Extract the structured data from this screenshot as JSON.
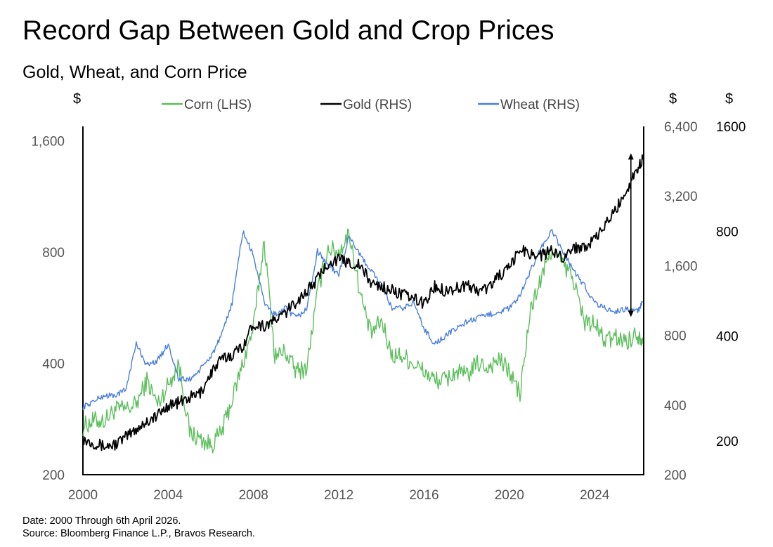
{
  "chart_data": {
    "type": "line",
    "title": "Record Gap Between Gold and Crop Prices",
    "subtitle": "Gold, Wheat, and Corn Price",
    "footer": [
      "Date: 2000 Through 6th April 2026.",
      "Source: Bloomberg Finance L.P., Bravos Research."
    ],
    "legend_placement": "top",
    "grid": false,
    "x_range": [
      2000,
      2026.3
    ],
    "x_ticks": [
      2000,
      2004,
      2008,
      2012,
      2016,
      2020,
      2024
    ],
    "axes": {
      "left": {
        "unit": "$",
        "scale": "log",
        "range": [
          200,
          1750
        ],
        "ticks": [
          200,
          400,
          800,
          1600
        ],
        "tick_labels": [
          "200",
          "400",
          "800",
          "1,600"
        ]
      },
      "right1": {
        "unit": "$",
        "scale": "log",
        "range": [
          200,
          6400
        ],
        "ticks": [
          200,
          400,
          800,
          1600,
          3200,
          6400
        ],
        "tick_labels": [
          "200",
          "400",
          "800",
          "1,600",
          "3,200",
          "6,400"
        ]
      },
      "right2": {
        "unit": "$",
        "scale": "log",
        "range": [
          160,
          1600
        ],
        "ticks": [
          200,
          400,
          800,
          1600
        ],
        "tick_labels": [
          "200",
          "400",
          "800",
          "1600"
        ]
      }
    },
    "annotation": {
      "type": "double-arrow",
      "x": 2025.7,
      "from_gold": 4900,
      "to_gold": 960
    },
    "series": [
      {
        "name": "Corn (LHS)",
        "axis": "left",
        "color": "#5cbe5c",
        "x": [
          2000,
          2000.5,
          2001,
          2001.5,
          2002,
          2002.5,
          2003,
          2003.5,
          2004,
          2004.5,
          2005,
          2005.5,
          2006,
          2006.5,
          2007,
          2007.5,
          2008,
          2008.5,
          2009,
          2009.5,
          2010,
          2010.5,
          2011,
          2011.5,
          2012,
          2012.5,
          2013,
          2013.5,
          2014,
          2014.5,
          2015,
          2015.5,
          2016,
          2016.5,
          2017,
          2017.5,
          2018,
          2018.5,
          2019,
          2019.5,
          2020,
          2020.5,
          2021,
          2021.5,
          2022,
          2022.5,
          2023,
          2023.5,
          2024,
          2024.5,
          2025,
          2025.5,
          2026,
          2026.25
        ],
        "values": [
          270,
          280,
          280,
          300,
          300,
          310,
          360,
          310,
          350,
          400,
          260,
          250,
          240,
          260,
          320,
          400,
          500,
          860,
          420,
          430,
          380,
          390,
          620,
          820,
          800,
          900,
          620,
          480,
          520,
          420,
          420,
          400,
          380,
          360,
          360,
          380,
          370,
          400,
          390,
          410,
          380,
          330,
          560,
          680,
          820,
          740,
          680,
          520,
          510,
          460,
          470,
          460,
          480,
          470
        ]
      },
      {
        "name": "Gold (RHS)",
        "axis": "right1",
        "color": "#000000",
        "x": [
          2000,
          2000.5,
          2001,
          2001.5,
          2002,
          2002.5,
          2003,
          2003.5,
          2004,
          2004.5,
          2005,
          2005.5,
          2006,
          2006.5,
          2007,
          2007.5,
          2008,
          2008.5,
          2009,
          2009.5,
          2010,
          2010.5,
          2011,
          2011.5,
          2012,
          2012.5,
          2013,
          2013.5,
          2014,
          2014.5,
          2015,
          2015.5,
          2016,
          2016.5,
          2017,
          2017.5,
          2018,
          2018.5,
          2019,
          2019.5,
          2020,
          2020.5,
          2021,
          2021.5,
          2022,
          2022.5,
          2023,
          2023.5,
          2024,
          2024.5,
          2025,
          2025.5,
          2026,
          2026.25
        ],
        "values": [
          285,
          275,
          265,
          270,
          290,
          315,
          340,
          360,
          400,
          410,
          430,
          450,
          550,
          630,
          660,
          720,
          900,
          880,
          930,
          1000,
          1120,
          1240,
          1400,
          1650,
          1700,
          1650,
          1600,
          1350,
          1300,
          1250,
          1200,
          1150,
          1100,
          1300,
          1250,
          1280,
          1320,
          1250,
          1280,
          1450,
          1550,
          1900,
          1800,
          1780,
          1850,
          1750,
          1900,
          1950,
          2050,
          2400,
          2800,
          3400,
          4200,
          4600
        ]
      },
      {
        "name": "Wheat (RHS)",
        "axis": "right2",
        "color": "#4a7fdb",
        "x": [
          2000,
          2000.5,
          2001,
          2001.5,
          2002,
          2002.5,
          2003,
          2003.5,
          2004,
          2004.5,
          2005,
          2005.5,
          2006,
          2006.5,
          2007,
          2007.5,
          2008,
          2008.5,
          2009,
          2009.5,
          2010,
          2010.5,
          2011,
          2011.5,
          2012,
          2012.5,
          2013,
          2013.5,
          2014,
          2014.5,
          2015,
          2015.5,
          2016,
          2016.5,
          2017,
          2017.5,
          2018,
          2018.5,
          2019,
          2019.5,
          2020,
          2020.5,
          2021,
          2021.5,
          2022,
          2022.5,
          2023,
          2023.5,
          2024,
          2024.5,
          2025,
          2025.5,
          2026,
          2026.25
        ],
        "values": [
          250,
          260,
          270,
          270,
          280,
          380,
          330,
          340,
          380,
          300,
          300,
          320,
          350,
          400,
          500,
          800,
          680,
          500,
          460,
          480,
          450,
          480,
          700,
          640,
          600,
          780,
          680,
          620,
          560,
          480,
          480,
          500,
          420,
          380,
          400,
          420,
          440,
          450,
          460,
          470,
          480,
          520,
          620,
          720,
          800,
          700,
          620,
          560,
          500,
          480,
          470,
          480,
          470,
          500
        ]
      }
    ]
  }
}
